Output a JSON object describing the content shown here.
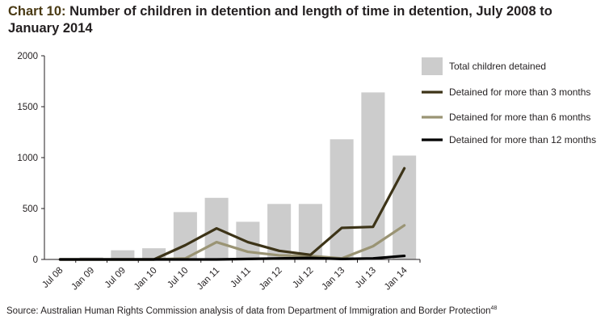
{
  "header": {
    "title_lead": "Chart 10:",
    "title_rest": " Number of children in detention and length of time in detention, July 2008 to January 2014"
  },
  "footer": {
    "source": "Source: Australian Human Rights Commission analysis of data from Department of Immigration and Border Protection",
    "footnote_ref": "48"
  },
  "chart_data": {
    "type": "bar",
    "title": "Number of children in detention and length of time in detention, July 2008 to January 2014",
    "xlabel": "",
    "ylabel": "",
    "ylim": [
      0,
      2000
    ],
    "yticks": [
      "0",
      "500",
      "1000",
      "1500",
      "2000"
    ],
    "categories": [
      "Jul 08",
      "Jan 09",
      "Jul 09",
      "Jan 10",
      "Jul 10",
      "Jan 11",
      "Jul 11",
      "Jan 12",
      "Jul 12",
      "Jan 13",
      "Jul 13",
      "Jan 14"
    ],
    "grid": false,
    "legend_position": "top-right",
    "series": [
      {
        "name": "Total children detained",
        "type": "bar",
        "color": "#cccccc",
        "values": [
          5,
          20,
          90,
          110,
          465,
          605,
          370,
          545,
          545,
          1180,
          1640,
          1020
        ]
      },
      {
        "name": "Detained for more than 3 months",
        "type": "line",
        "color": "#3d3418",
        "values": [
          0,
          0,
          0,
          0,
          140,
          305,
          170,
          85,
          45,
          310,
          320,
          895
        ]
      },
      {
        "name": "Detained for more than 6 months",
        "type": "line",
        "color": "#9a9474",
        "values": [
          0,
          0,
          0,
          0,
          10,
          170,
          75,
          40,
          35,
          10,
          130,
          335
        ]
      },
      {
        "name": "Detained for more than 12 months",
        "type": "line",
        "color": "#000000",
        "values": [
          0,
          0,
          0,
          0,
          0,
          0,
          5,
          10,
          15,
          5,
          10,
          35
        ]
      }
    ]
  }
}
